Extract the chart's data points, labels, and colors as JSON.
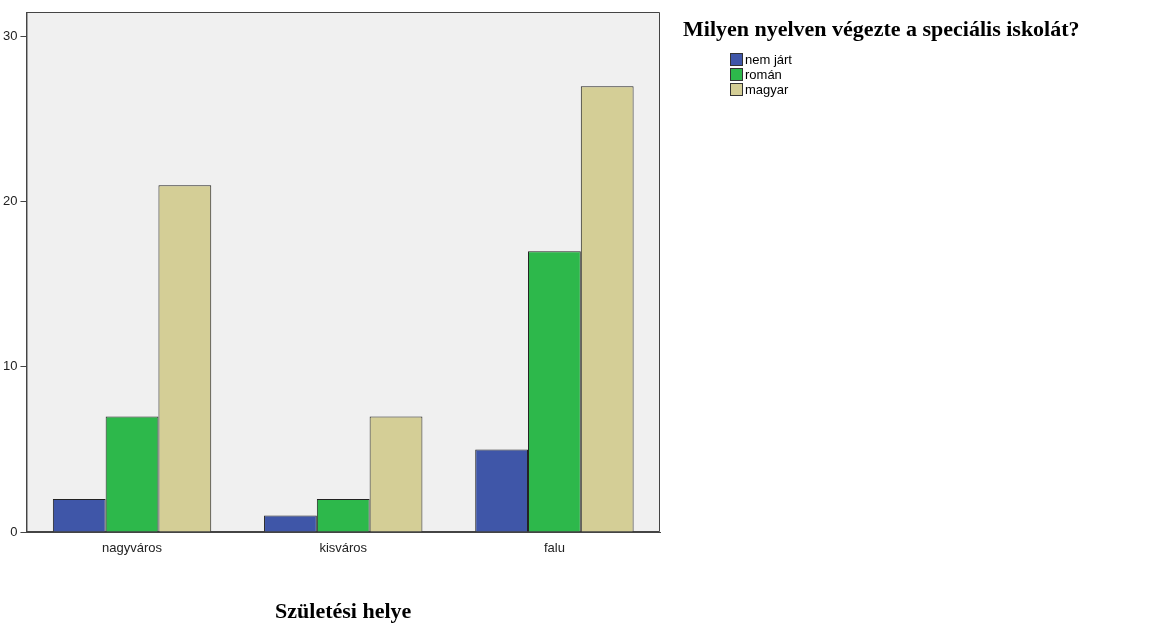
{
  "chart_data": {
    "type": "bar",
    "xlabel": "Születési helye",
    "legend_title": "Milyen nyelven végezte a speciális iskolát?",
    "legend": "right",
    "categories": [
      "nagyváros",
      "kisváros",
      "falu"
    ],
    "series": [
      {
        "name": "nem járt",
        "color": "#3f56a8",
        "values": [
          2,
          1,
          5
        ]
      },
      {
        "name": "román",
        "color": "#2db84b",
        "values": [
          7,
          2,
          17
        ]
      },
      {
        "name": "magyar",
        "color": "#d4ce96",
        "values": [
          21,
          7,
          27
        ]
      }
    ],
    "ylim": [
      0,
      31.5
    ],
    "yticks": [
      0,
      10,
      20,
      30
    ],
    "grid": false
  }
}
